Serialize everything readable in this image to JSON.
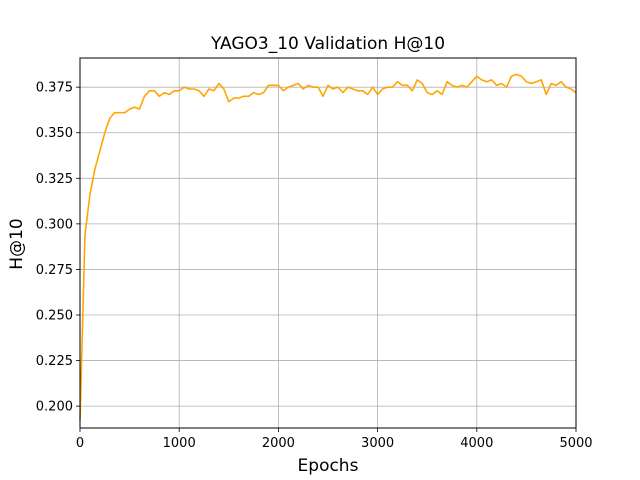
{
  "chart_data": {
    "type": "line",
    "title": "YAGO3_10 Validation H@10",
    "xlabel": "Epochs",
    "ylabel": "H@10",
    "xlim": [
      0,
      5000
    ],
    "ylim": [
      0.188,
      0.391
    ],
    "xticks": [
      0,
      1000,
      2000,
      3000,
      4000,
      5000
    ],
    "xtick_labels": [
      "0",
      "1000",
      "2000",
      "3000",
      "4000",
      "5000"
    ],
    "yticks": [
      0.2,
      0.225,
      0.25,
      0.275,
      0.3,
      0.325,
      0.35,
      0.375
    ],
    "ytick_labels": [
      "0.200",
      "0.225",
      "0.250",
      "0.275",
      "0.300",
      "0.325",
      "0.350",
      "0.375"
    ],
    "grid": true,
    "series": [
      {
        "color": "#ffa500",
        "x": [
          0,
          50,
          100,
          150,
          200,
          250,
          300,
          350,
          400,
          450,
          500,
          550,
          600,
          650,
          700,
          750,
          800,
          850,
          900,
          950,
          1000,
          1050,
          1100,
          1150,
          1200,
          1250,
          1300,
          1350,
          1400,
          1450,
          1500,
          1550,
          1600,
          1650,
          1700,
          1750,
          1800,
          1850,
          1900,
          1950,
          2000,
          2050,
          2100,
          2150,
          2200,
          2250,
          2300,
          2350,
          2400,
          2450,
          2500,
          2550,
          2600,
          2650,
          2700,
          2750,
          2800,
          2850,
          2900,
          2950,
          3000,
          3050,
          3100,
          3150,
          3200,
          3250,
          3300,
          3350,
          3400,
          3450,
          3500,
          3550,
          3600,
          3650,
          3700,
          3750,
          3800,
          3850,
          3900,
          3950,
          4000,
          4050,
          4100,
          4150,
          4200,
          4250,
          4300,
          4350,
          4400,
          4450,
          4500,
          4550,
          4600,
          4650,
          4700,
          4750,
          4800,
          4850,
          4900,
          4950,
          5000
        ],
        "y": [
          0.192,
          0.294,
          0.316,
          0.33,
          0.34,
          0.35,
          0.358,
          0.361,
          0.361,
          0.361,
          0.363,
          0.364,
          0.363,
          0.37,
          0.373,
          0.373,
          0.37,
          0.372,
          0.371,
          0.373,
          0.373,
          0.375,
          0.374,
          0.374,
          0.373,
          0.37,
          0.374,
          0.373,
          0.377,
          0.374,
          0.367,
          0.369,
          0.369,
          0.37,
          0.37,
          0.372,
          0.371,
          0.372,
          0.376,
          0.376,
          0.376,
          0.373,
          0.375,
          0.376,
          0.377,
          0.374,
          0.376,
          0.375,
          0.375,
          0.37,
          0.376,
          0.374,
          0.375,
          0.372,
          0.375,
          0.374,
          0.373,
          0.373,
          0.371,
          0.375,
          0.371,
          0.374,
          0.375,
          0.375,
          0.378,
          0.376,
          0.376,
          0.373,
          0.379,
          0.377,
          0.372,
          0.371,
          0.373,
          0.371,
          0.378,
          0.376,
          0.375,
          0.376,
          0.375,
          0.378,
          0.381,
          0.379,
          0.378,
          0.379,
          0.376,
          0.377,
          0.375,
          0.381,
          0.382,
          0.381,
          0.378,
          0.377,
          0.378,
          0.379,
          0.371,
          0.377,
          0.376,
          0.378,
          0.375,
          0.374,
          0.372
        ]
      }
    ]
  }
}
